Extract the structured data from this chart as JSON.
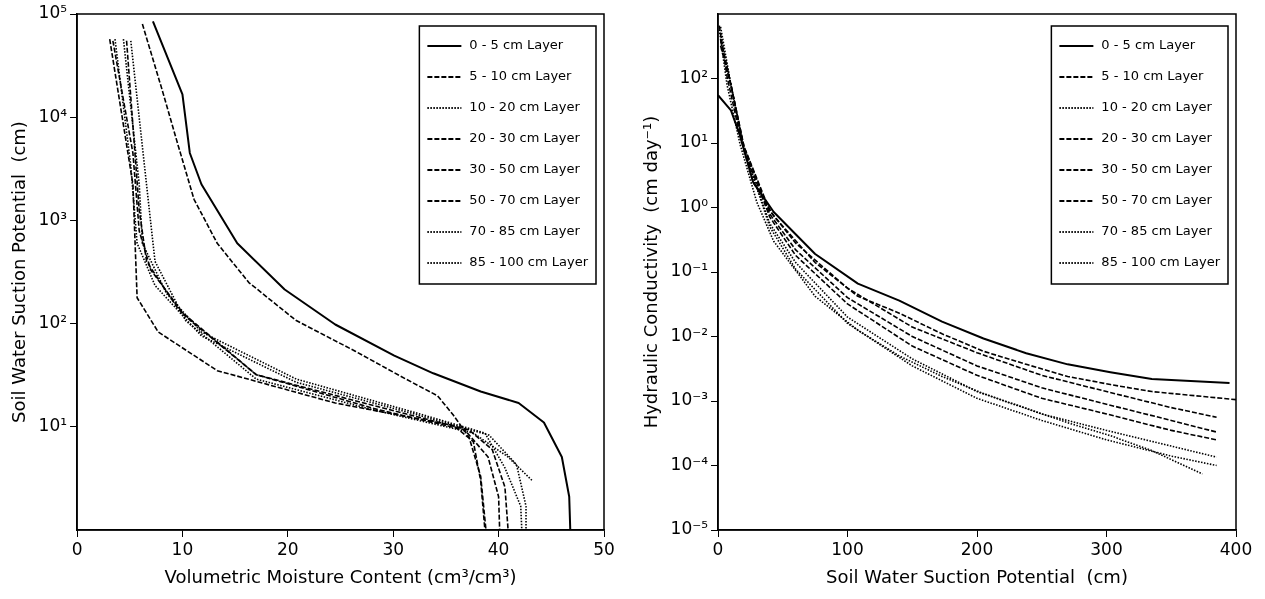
{
  "chart_data": [
    {
      "type": "line",
      "xlabel": "Volumetric Moisture Content (cm³/cm³)",
      "ylabel": "Soil Water Suction Potential  (cm)",
      "log": "y",
      "grid": false,
      "legend": "top right",
      "marker": "none",
      "xlim": [
        0,
        50
      ],
      "xticks": [
        0,
        10,
        20,
        30,
        40,
        50
      ],
      "ylim": [
        1,
        100000
      ],
      "yticks": [
        {
          "value": 10,
          "label": "10¹"
        },
        {
          "value": 100,
          "label": "10²"
        },
        {
          "value": 1000,
          "label": "10³"
        },
        {
          "value": 10000,
          "label": "10⁴"
        },
        {
          "value": 100000,
          "label": "10⁵"
        }
      ],
      "series": [
        {
          "name": "0 - 5 cm Layer",
          "color": "#000000",
          "line_style": "solid",
          "x": [
            7.2,
            10,
            10.7,
            11.8,
            15.2,
            19.7,
            24.5,
            30.1,
            33.8,
            38.3,
            41.9,
            44.3,
            46,
            46.7,
            46.8
          ],
          "values": [
            85000,
            16600,
            4500,
            2240,
            600,
            214,
            98,
            49,
            33,
            22,
            17,
            11,
            5.1,
            2.1,
            1
          ]
        },
        {
          "name": "5 - 10 cm Layer",
          "color": "#000000",
          "line_style": "dashed",
          "x": [
            6.2,
            8.1,
            9.6,
            11.1,
            13.3,
            16.3,
            20.8,
            26.4,
            31.2,
            34.2,
            35.7,
            37.2,
            38.3,
            38.8
          ],
          "values": [
            80000,
            18000,
            5300,
            1600,
            600,
            250,
            107,
            54,
            29,
            20,
            13,
            7.9,
            3.3,
            1
          ]
        },
        {
          "name": "10 - 20 cm Layer",
          "color": "#000000",
          "line_style": "dotted",
          "x": [
            5.1,
            7,
            7.4,
            10.3,
            17,
            28.2,
            37.6,
            40.9,
            43.2
          ],
          "values": [
            55000,
            930,
            400,
            107,
            29,
            14.5,
            8.7,
            5.1,
            3
          ]
        },
        {
          "name": "20 - 30 cm Layer",
          "color": "#000000",
          "line_style": "dashed",
          "x": [
            4.7,
            5.9,
            6.6,
            9.6,
            17,
            28.2,
            37.2,
            39.4,
            40.6,
            40.9
          ],
          "values": [
            55000,
            1250,
            400,
            138,
            32,
            16,
            9.3,
            6,
            2.6,
            1
          ]
        },
        {
          "name": "30 - 50 cm Layer",
          "color": "#000000",
          "line_style": "dashed",
          "x": [
            3.4,
            5.3,
            5.9,
            7,
            10.3,
            17,
            28.2,
            36.8,
            39,
            40,
            40.1
          ],
          "values": [
            55000,
            4500,
            790,
            330,
            117,
            32,
            15,
            9.3,
            5.1,
            2.1,
            1
          ]
        },
        {
          "name": "50 - 70 cm Layer",
          "color": "#000000",
          "line_style": "dashed",
          "x": [
            3.1,
            5.3,
            5.7,
            7.7,
            13.3,
            24.5,
            35.7,
            37.6,
            38.3,
            38.7
          ],
          "values": [
            57000,
            2240,
            178,
            83,
            35,
            17,
            10.3,
            7.2,
            3,
            1
          ]
        },
        {
          "name": "70 - 85 cm Layer",
          "color": "#000000",
          "line_style": "dotted",
          "x": [
            3.6,
            5.1,
            5.7,
            7.4,
            11.8,
            20.8,
            32,
            39.1,
            41.7,
            42.6,
            42.6
          ],
          "values": [
            57000,
            3400,
            600,
            234,
            76,
            27,
            13.3,
            8.3,
            4.3,
            1.7,
            1
          ]
        },
        {
          "name": "85 - 100 cm Layer",
          "color": "#000000",
          "line_style": "dotted",
          "x": [
            4.4,
            5.9,
            6.2,
            8.5,
            11.8,
            20.8,
            32,
            38.7,
            40.6,
            42.1,
            42.2
          ],
          "values": [
            57000,
            2240,
            600,
            195,
            83,
            29,
            13.8,
            8.7,
            4,
            1.7,
            1
          ]
        }
      ]
    },
    {
      "type": "line",
      "xlabel": "Soil Water Suction Potential  (cm)",
      "ylabel": "Hydraulic Conductivity  (cm day⁻¹)",
      "log": "y",
      "grid": false,
      "legend": "top right",
      "marker": "none",
      "xlim": [
        0,
        400
      ],
      "xticks": [
        0,
        100,
        200,
        300,
        400
      ],
      "ylim": [
        1e-05,
        1000
      ],
      "yticks": [
        {
          "value": 1e-05,
          "label": "10⁻⁵"
        },
        {
          "value": 0.0001,
          "label": "10⁻⁴"
        },
        {
          "value": 0.001,
          "label": "10⁻³"
        },
        {
          "value": 0.01,
          "label": "10⁻²"
        },
        {
          "value": 0.1,
          "label": "10⁻¹"
        },
        {
          "value": 1,
          "label": "10⁰"
        },
        {
          "value": 10,
          "label": "10¹"
        },
        {
          "value": 100,
          "label": "10²"
        }
      ],
      "series": [
        {
          "name": "0 - 5 cm Layer",
          "color": "#000000",
          "line_style": "solid",
          "x": [
            0,
            10,
            17,
            27,
            43,
            75,
            108,
            140,
            173,
            205,
            238,
            270,
            303,
            335,
            395
          ],
          "values": [
            55,
            32,
            13,
            2.5,
            0.85,
            0.19,
            0.066,
            0.036,
            0.017,
            0.0093,
            0.0055,
            0.0037,
            0.0028,
            0.0022,
            0.0019
          ]
        },
        {
          "name": "5 - 10 cm Layer",
          "color": "#000000",
          "line_style": "dashed",
          "x": [
            1,
            7,
            17,
            27,
            43,
            75,
            108,
            140,
            173,
            205,
            238,
            270,
            303,
            335,
            400
          ],
          "values": [
            660,
            107,
            13,
            2.5,
            0.74,
            0.14,
            0.042,
            0.023,
            0.011,
            0.0059,
            0.0037,
            0.0024,
            0.0018,
            0.0014,
            0.00105
          ]
        },
        {
          "name": "10 - 20 cm Layer",
          "color": "#000000",
          "line_style": "dotted",
          "x": [
            1,
            7,
            17,
            30,
            43,
            75,
            108,
            140,
            173,
            205,
            238,
            270,
            303,
            335,
            374
          ],
          "values": [
            570,
            79,
            9.6,
            1.2,
            0.3,
            0.042,
            0.0125,
            0.005,
            0.0024,
            0.0013,
            0.00077,
            0.00046,
            0.00029,
            0.00017,
            7.4e-05
          ]
        },
        {
          "name": "20 - 30 cm Layer",
          "color": "#000000",
          "line_style": "dashed",
          "x": [
            2,
            10,
            20,
            40,
            60,
            100,
            150,
            200,
            250,
            300,
            350,
            385
          ],
          "values": [
            400,
            79,
            8.9,
            0.79,
            0.22,
            0.04,
            0.01,
            0.0035,
            0.0016,
            0.00089,
            0.0005,
            0.00033
          ]
        },
        {
          "name": "30 - 50 cm Layer",
          "color": "#000000",
          "line_style": "dashed",
          "x": [
            2,
            10,
            20,
            40,
            60,
            100,
            150,
            200,
            250,
            300,
            350,
            385
          ],
          "values": [
            400,
            79,
            7.9,
            0.71,
            0.18,
            0.032,
            0.0071,
            0.0025,
            0.0011,
            0.00063,
            0.00035,
            0.00025
          ]
        },
        {
          "name": "50 - 70 cm Layer",
          "color": "#000000",
          "line_style": "dashed",
          "x": [
            2,
            10,
            20,
            40,
            60,
            100,
            150,
            200,
            250,
            300,
            350,
            385
          ],
          "values": [
            320,
            79,
            8.9,
            0.89,
            0.28,
            0.056,
            0.014,
            0.0056,
            0.0025,
            0.0014,
            0.00079,
            0.00056
          ]
        },
        {
          "name": "70 - 85 cm Layer",
          "color": "#000000",
          "line_style": "dotted",
          "x": [
            2,
            10,
            20,
            40,
            60,
            100,
            150,
            200,
            250,
            300,
            350,
            385
          ],
          "values": [
            500,
            79,
            7.9,
            0.56,
            0.14,
            0.02,
            0.0045,
            0.0014,
            0.00063,
            0.00035,
            0.0002,
            0.000135
          ]
        },
        {
          "name": "85 - 100 cm Layer",
          "color": "#000000",
          "line_style": "dotted",
          "x": [
            2,
            10,
            20,
            40,
            60,
            100,
            150,
            200,
            250,
            300,
            350,
            385
          ],
          "values": [
            630,
            79,
            7.9,
            0.5,
            0.11,
            0.016,
            0.0035,
            0.0011,
            0.0005,
            0.00025,
            0.00014,
            0.0001
          ]
        }
      ]
    }
  ]
}
